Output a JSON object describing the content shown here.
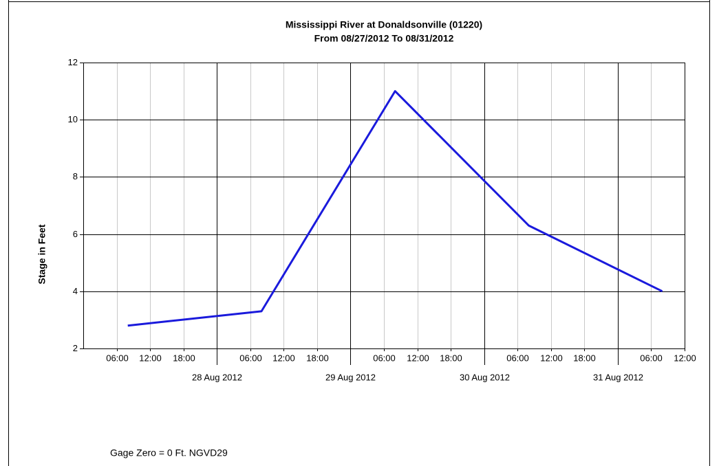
{
  "chart_data": {
    "type": "line",
    "title": "Mississippi River at Donaldsonville (01220)",
    "subtitle": "From 08/27/2012 To 08/31/2012",
    "y_label": "Stage in Feet",
    "footer": "Gage Zero = 0 Ft. NGVD29",
    "x": [
      "2012-08-27 08:00",
      "2012-08-28 08:00",
      "2012-08-29 08:00",
      "2012-08-30 08:00",
      "2012-08-31 08:00"
    ],
    "series": [
      {
        "name": "Stage",
        "color": "#1a1adc",
        "values": [
          2.8,
          3.3,
          11.0,
          6.3,
          4.0
        ]
      }
    ],
    "xlim": [
      "2012-08-27 00:00",
      "2012-08-31 12:00"
    ],
    "xticks": [
      {
        "value": "2012-08-27 06:00",
        "label": "06:00"
      },
      {
        "value": "2012-08-27 12:00",
        "label": "12:00"
      },
      {
        "value": "2012-08-27 18:00",
        "label": "18:00"
      },
      {
        "value": "2012-08-28 00:00",
        "label": "28 Aug 2012"
      },
      {
        "value": "2012-08-28 06:00",
        "label": "06:00"
      },
      {
        "value": "2012-08-28 12:00",
        "label": "12:00"
      },
      {
        "value": "2012-08-28 18:00",
        "label": "18:00"
      },
      {
        "value": "2012-08-29 00:00",
        "label": "29 Aug 2012"
      },
      {
        "value": "2012-08-29 06:00",
        "label": "06:00"
      },
      {
        "value": "2012-08-29 12:00",
        "label": "12:00"
      },
      {
        "value": "2012-08-29 18:00",
        "label": "18:00"
      },
      {
        "value": "2012-08-30 00:00",
        "label": "30 Aug 2012"
      },
      {
        "value": "2012-08-30 06:00",
        "label": "06:00"
      },
      {
        "value": "2012-08-30 12:00",
        "label": "12:00"
      },
      {
        "value": "2012-08-30 18:00",
        "label": "18:00"
      },
      {
        "value": "2012-08-31 00:00",
        "label": "31 Aug 2012"
      },
      {
        "value": "2012-08-31 06:00",
        "label": "06:00"
      },
      {
        "value": "2012-08-31 12:00",
        "label": "12:00"
      }
    ],
    "ylim": [
      2,
      12
    ],
    "yticks": [
      2,
      4,
      6,
      8,
      10,
      12
    ],
    "grid": true
  }
}
